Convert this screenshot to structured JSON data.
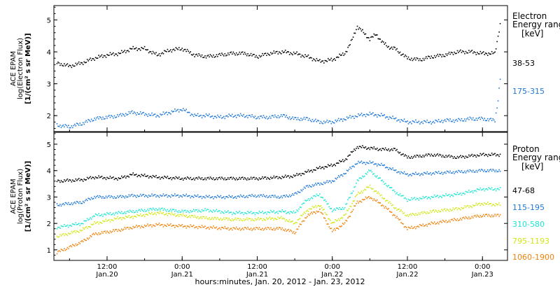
{
  "figure": {
    "xlabel": "hours:minutes, Jan. 20, 2012 - Jan. 23, 2012",
    "x_ticks": [
      {
        "t": 12,
        "time": "12:00",
        "date": "Jan.20"
      },
      {
        "t": 24,
        "time": "0:00",
        "date": "Jan.21"
      },
      {
        "t": 36,
        "time": "12:00",
        "date": "Jan.21"
      },
      {
        "t": 48,
        "time": "0:00",
        "date": "Jan.22"
      },
      {
        "t": 60,
        "time": "12:00",
        "date": "Jan.22"
      },
      {
        "t": 72,
        "time": "0:00",
        "date": "Jan.23"
      }
    ],
    "x_unit": "hours since Jan. 20, 2012 00:00",
    "xlim": [
      3.5,
      76
    ]
  },
  "chart_data": [
    {
      "type": "scatter",
      "panel": "electron",
      "ylabel": [
        "ACE EPAM",
        "log(Electron Flux)",
        "[1/(cm² s sr MeV)]"
      ],
      "ylim": [
        1.5,
        5.45
      ],
      "yticks": [
        2,
        3,
        4,
        5
      ],
      "legend_title": [
        "Electron",
        "Energy range",
        "[keV]"
      ],
      "series": [
        {
          "name": "38-53",
          "color": "#000000",
          "x": [
            4,
            6,
            8,
            10,
            12,
            14,
            16,
            18,
            20,
            22,
            24,
            26,
            28,
            30,
            32,
            34,
            36,
            38,
            40,
            42,
            44,
            46,
            48,
            50,
            51,
            52,
            53,
            54,
            55,
            56,
            57,
            58,
            59,
            60,
            62,
            64,
            66,
            68,
            70,
            72,
            74,
            75
          ],
          "y": [
            3.65,
            3.55,
            3.65,
            3.8,
            3.9,
            3.95,
            4.1,
            4.1,
            3.9,
            4.05,
            4.1,
            3.9,
            3.85,
            3.9,
            3.95,
            3.95,
            3.85,
            3.95,
            4.0,
            3.95,
            3.85,
            3.7,
            3.75,
            3.95,
            4.3,
            4.8,
            4.6,
            4.4,
            4.55,
            4.3,
            4.15,
            4.1,
            3.95,
            3.8,
            3.75,
            3.85,
            3.9,
            4.0,
            4.0,
            3.95,
            3.95,
            5.05
          ]
        },
        {
          "name": "175-315",
          "color": "#1e78d8",
          "x": [
            4,
            6,
            8,
            10,
            12,
            14,
            16,
            18,
            20,
            22,
            24,
            26,
            28,
            30,
            32,
            34,
            36,
            38,
            40,
            42,
            44,
            46,
            48,
            50,
            52,
            54,
            56,
            58,
            60,
            62,
            64,
            66,
            68,
            70,
            72,
            74,
            74.5,
            75
          ],
          "y": [
            1.7,
            1.65,
            1.75,
            1.9,
            1.95,
            2.0,
            2.1,
            2.05,
            2.0,
            2.1,
            2.2,
            2.0,
            2.0,
            1.95,
            2.0,
            2.0,
            1.95,
            1.95,
            2.0,
            1.9,
            1.9,
            1.8,
            1.8,
            1.9,
            2.0,
            2.05,
            2.0,
            1.9,
            1.8,
            1.8,
            1.8,
            1.85,
            1.85,
            1.9,
            1.9,
            1.85,
            2.5,
            3.5
          ]
        }
      ]
    },
    {
      "type": "scatter",
      "panel": "proton",
      "ylabel": [
        "ACE EPAM",
        "log(Proton Flux)",
        "[1/(cm² s sr MeV)]"
      ],
      "ylim": [
        0.6,
        5.45
      ],
      "yticks": [
        1,
        2,
        3,
        4,
        5
      ],
      "legend_title": [
        "Proton",
        "Energy range",
        "[keV]"
      ],
      "series": [
        {
          "name": "47-68",
          "color": "#000000",
          "x": [
            4,
            8,
            10,
            14,
            16,
            20,
            24,
            28,
            32,
            36,
            40,
            42,
            44,
            46,
            48,
            50,
            52,
            54,
            56,
            58,
            60,
            64,
            68,
            72,
            75
          ],
          "y": [
            3.6,
            3.65,
            3.75,
            3.7,
            3.85,
            3.75,
            3.7,
            3.7,
            3.7,
            3.7,
            3.75,
            3.8,
            3.95,
            4.1,
            4.2,
            4.4,
            4.9,
            4.85,
            4.8,
            4.8,
            4.5,
            4.6,
            4.5,
            4.6,
            4.6
          ]
        },
        {
          "name": "115-195",
          "color": "#1e78d8",
          "x": [
            4,
            8,
            10,
            14,
            16,
            20,
            24,
            28,
            32,
            36,
            40,
            42,
            44,
            46,
            48,
            50,
            52,
            54,
            56,
            58,
            60,
            64,
            68,
            72,
            75
          ],
          "y": [
            2.7,
            2.8,
            3.0,
            3.0,
            3.05,
            3.05,
            3.05,
            3.0,
            3.0,
            3.05,
            3.0,
            3.1,
            3.4,
            3.5,
            3.6,
            3.9,
            4.3,
            4.3,
            4.2,
            4.0,
            3.85,
            3.9,
            3.95,
            4.0,
            4.0
          ]
        },
        {
          "name": "310-580",
          "color": "#1ee6d2",
          "x": [
            4,
            8,
            10,
            14,
            16,
            20,
            24,
            28,
            32,
            36,
            40,
            42,
            44,
            46,
            48,
            50,
            52,
            54,
            56,
            58,
            60,
            64,
            68,
            72,
            75
          ],
          "y": [
            1.85,
            2.0,
            2.3,
            2.4,
            2.45,
            2.55,
            2.45,
            2.5,
            2.4,
            2.4,
            2.45,
            2.4,
            2.9,
            3.1,
            2.5,
            2.6,
            3.6,
            4.0,
            3.6,
            3.2,
            2.9,
            3.0,
            3.1,
            3.3,
            3.3
          ]
        },
        {
          "name": "795-1193",
          "color": "#d2e614",
          "x": [
            4,
            8,
            10,
            14,
            16,
            20,
            24,
            28,
            32,
            36,
            40,
            42,
            44,
            46,
            48,
            50,
            52,
            54,
            56,
            58,
            60,
            64,
            68,
            72,
            75
          ],
          "y": [
            1.5,
            1.75,
            2.0,
            2.2,
            2.25,
            2.4,
            2.3,
            2.2,
            2.15,
            2.15,
            2.2,
            2.0,
            2.5,
            2.7,
            2.0,
            2.3,
            3.1,
            3.4,
            3.0,
            2.6,
            2.3,
            2.45,
            2.55,
            2.75,
            2.7
          ]
        },
        {
          "name": "1060-1900",
          "color": "#f0820a",
          "x": [
            4,
            8,
            10,
            14,
            16,
            20,
            24,
            28,
            32,
            36,
            40,
            42,
            44,
            46,
            48,
            50,
            52,
            54,
            56,
            58,
            60,
            64,
            68,
            72,
            75
          ],
          "y": [
            0.9,
            1.3,
            1.6,
            1.75,
            1.85,
            1.95,
            1.9,
            1.85,
            1.8,
            1.8,
            1.8,
            1.65,
            2.3,
            2.5,
            1.7,
            2.0,
            2.8,
            3.0,
            2.7,
            2.3,
            1.8,
            2.0,
            2.15,
            2.3,
            2.3
          ]
        }
      ]
    }
  ]
}
